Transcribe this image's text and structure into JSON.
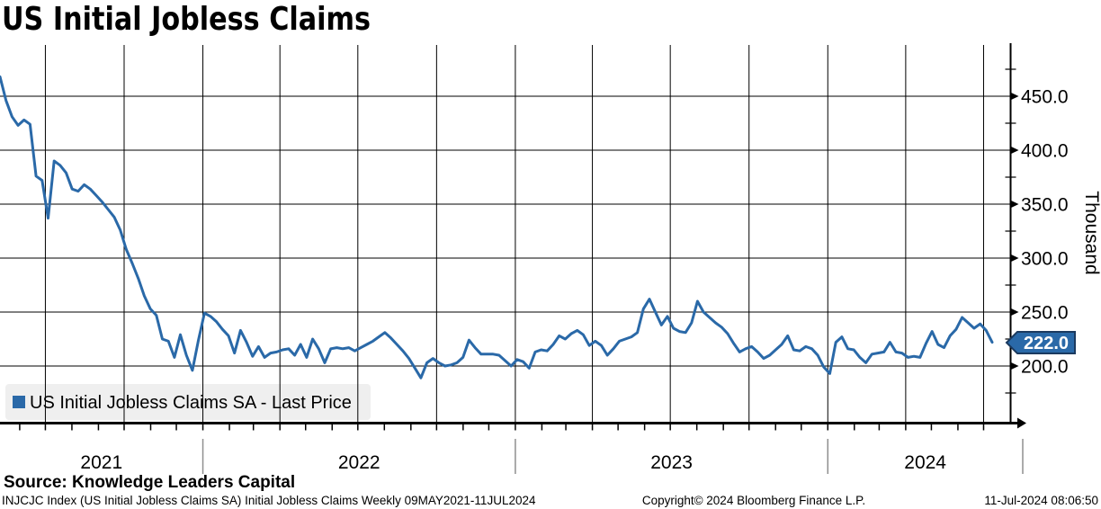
{
  "title": "US Initial Jobless Claims",
  "legend": {
    "label": "US Initial Jobless Claims SA - Last Price"
  },
  "source": "Source: Knowledge Leaders Capital",
  "footer": {
    "left": "INJCJC Index (US Initial Jobless Claims SA) Initial Jobless Claims  Weekly 09MAY2021-11JUL2024",
    "center": "Copyright© 2024 Bloomberg Finance L.P.",
    "right": "11-Jul-2024 08:06:50"
  },
  "y_axis": {
    "unit_label": "Thousand",
    "major_ticks": [
      450,
      400,
      350,
      300,
      250,
      200
    ],
    "minor_ticks": [
      475,
      425,
      375,
      325,
      275,
      225,
      175
    ],
    "last_price_label": "222.0"
  },
  "x_axis": {
    "year_labels": [
      "2021",
      "2022",
      "2023",
      "2024"
    ]
  },
  "colors": {
    "line": "#2a69a8",
    "badge_fill": "#2a69a8",
    "badge_border": "#1b3a5f",
    "grid": "#000000",
    "legend_bg": "#efefef",
    "year_separator": "#8f8f8f"
  },
  "chart_data": {
    "type": "line",
    "series_name": "US Initial Jobless Claims SA - Last Price",
    "unit": "Thousand",
    "frequency": "Weekly",
    "start_date": "2021-05-09",
    "end_date": "2024-07-11",
    "last_price": 222.0,
    "ylim_ticks": [
      200,
      450
    ],
    "values": [
      468,
      446,
      431,
      423,
      428,
      424,
      376,
      372,
      337,
      390,
      386,
      379,
      364,
      362,
      368,
      364,
      358,
      352,
      345,
      338,
      326,
      308,
      295,
      281,
      265,
      253,
      247,
      225,
      223,
      208,
      229,
      210,
      196,
      224,
      249,
      246,
      241,
      234,
      228,
      212,
      233,
      222,
      209,
      218,
      208,
      212,
      213,
      215,
      216,
      210,
      220,
      208,
      225,
      216,
      203,
      216,
      217,
      216,
      217,
      214,
      217,
      220,
      223,
      227,
      231,
      226,
      220,
      214,
      207,
      198,
      189,
      203,
      207,
      203,
      200,
      201,
      203,
      208,
      224,
      217,
      211,
      211,
      211,
      210,
      205,
      200,
      206,
      204,
      198,
      213,
      215,
      214,
      220,
      228,
      225,
      230,
      233,
      229,
      219,
      223,
      219,
      210,
      216,
      223,
      225,
      227,
      231,
      253,
      262,
      250,
      238,
      246,
      235,
      232,
      231,
      240,
      260,
      250,
      245,
      240,
      236,
      230,
      221,
      213,
      216,
      218,
      213,
      207,
      210,
      215,
      220,
      228,
      215,
      214,
      218,
      216,
      210,
      199,
      193,
      222,
      227,
      216,
      215,
      208,
      203,
      211,
      212,
      213,
      222,
      213,
      212,
      208,
      209,
      208,
      221,
      232,
      220,
      217,
      228,
      234,
      245,
      240,
      235,
      239,
      233,
      222
    ]
  }
}
